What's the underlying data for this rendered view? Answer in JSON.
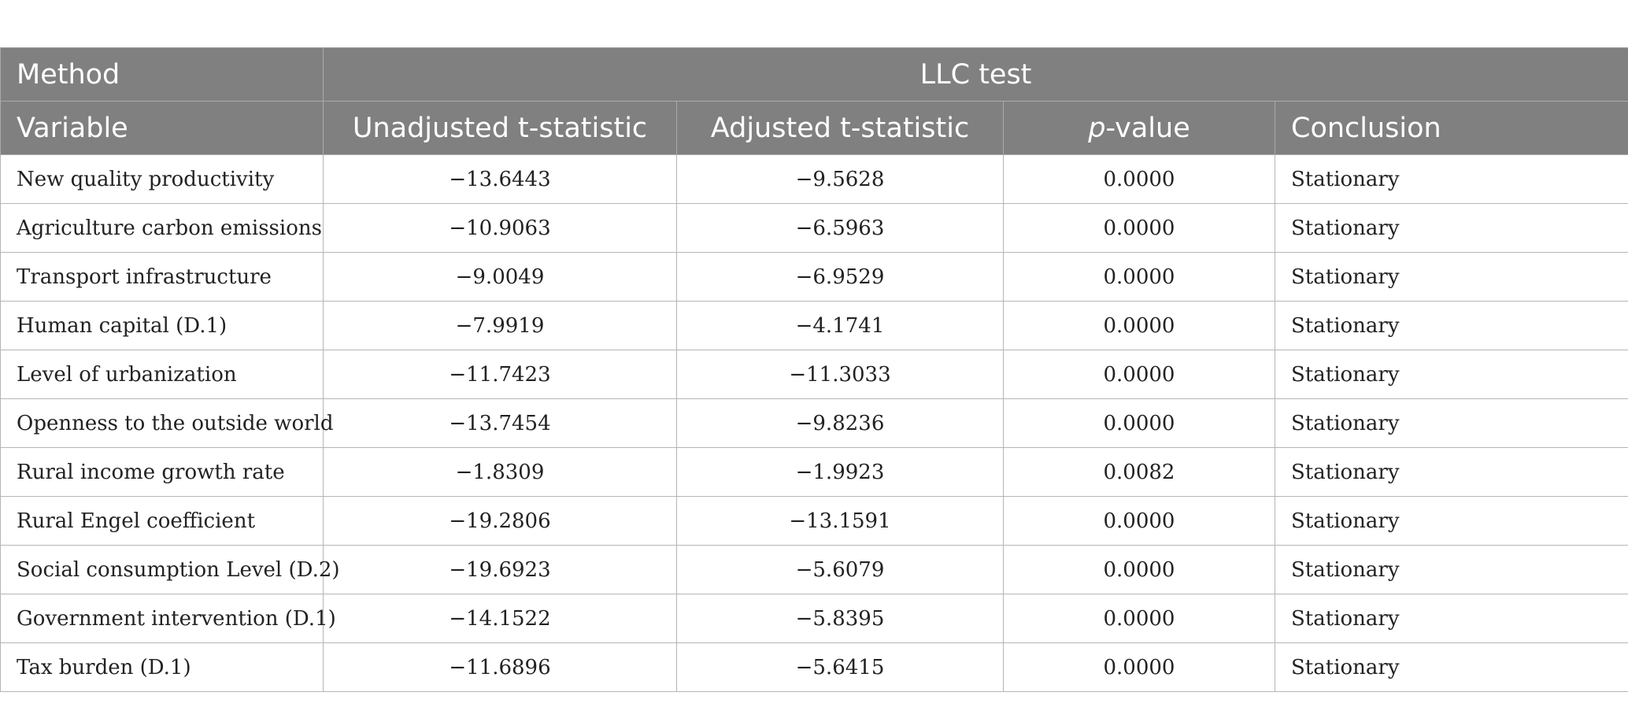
{
  "header": {
    "method_label": "Method",
    "test_label": "LLC test",
    "variable_label": "Variable",
    "unadjusted_label": "Unadjusted t-statistic",
    "adjusted_label": "Adjusted t-statistic",
    "pvalue_italic": "p",
    "pvalue_rest": "-value",
    "conclusion_label": "Conclusion"
  },
  "rows": [
    {
      "variable": "New quality productivity",
      "unadjusted": "−13.6443",
      "adjusted": "−9.5628",
      "p": "0.0000",
      "conclusion": "Stationary"
    },
    {
      "variable": "Agriculture carbon emissions",
      "unadjusted": "−10.9063",
      "adjusted": "−6.5963",
      "p": "0.0000",
      "conclusion": "Stationary"
    },
    {
      "variable": "Transport infrastructure",
      "unadjusted": "−9.0049",
      "adjusted": "−6.9529",
      "p": "0.0000",
      "conclusion": "Stationary"
    },
    {
      "variable": "Human capital (D.1)",
      "unadjusted": "−7.9919",
      "adjusted": "−4.1741",
      "p": "0.0000",
      "conclusion": "Stationary"
    },
    {
      "variable": "Level of urbanization",
      "unadjusted": "−11.7423",
      "adjusted": "−11.3033",
      "p": "0.0000",
      "conclusion": "Stationary"
    },
    {
      "variable": "Openness to the outside world",
      "unadjusted": "−13.7454",
      "adjusted": "−9.8236",
      "p": "0.0000",
      "conclusion": "Stationary"
    },
    {
      "variable": "Rural income growth rate",
      "unadjusted": "−1.8309",
      "adjusted": "−1.9923",
      "p": "0.0082",
      "conclusion": "Stationary"
    },
    {
      "variable": "Rural Engel coefficient",
      "unadjusted": "−19.2806",
      "adjusted": "−13.1591",
      "p": "0.0000",
      "conclusion": "Stationary"
    },
    {
      "variable": "Social consumption Level (D.2)",
      "unadjusted": "−19.6923",
      "adjusted": "−5.6079",
      "p": "0.0000",
      "conclusion": "Stationary"
    },
    {
      "variable": "Government intervention (D.1)",
      "unadjusted": "−14.1522",
      "adjusted": "−5.8395",
      "p": "0.0000",
      "conclusion": "Stationary"
    },
    {
      "variable": "Tax burden (D.1)",
      "unadjusted": "−11.6896",
      "adjusted": "−5.6415",
      "p": "0.0000",
      "conclusion": "Stationary"
    }
  ],
  "colors": {
    "header_bg": "#7f807f",
    "header_text": "#ffffff",
    "body_text": "#222222",
    "border": "#b5b5b5"
  }
}
